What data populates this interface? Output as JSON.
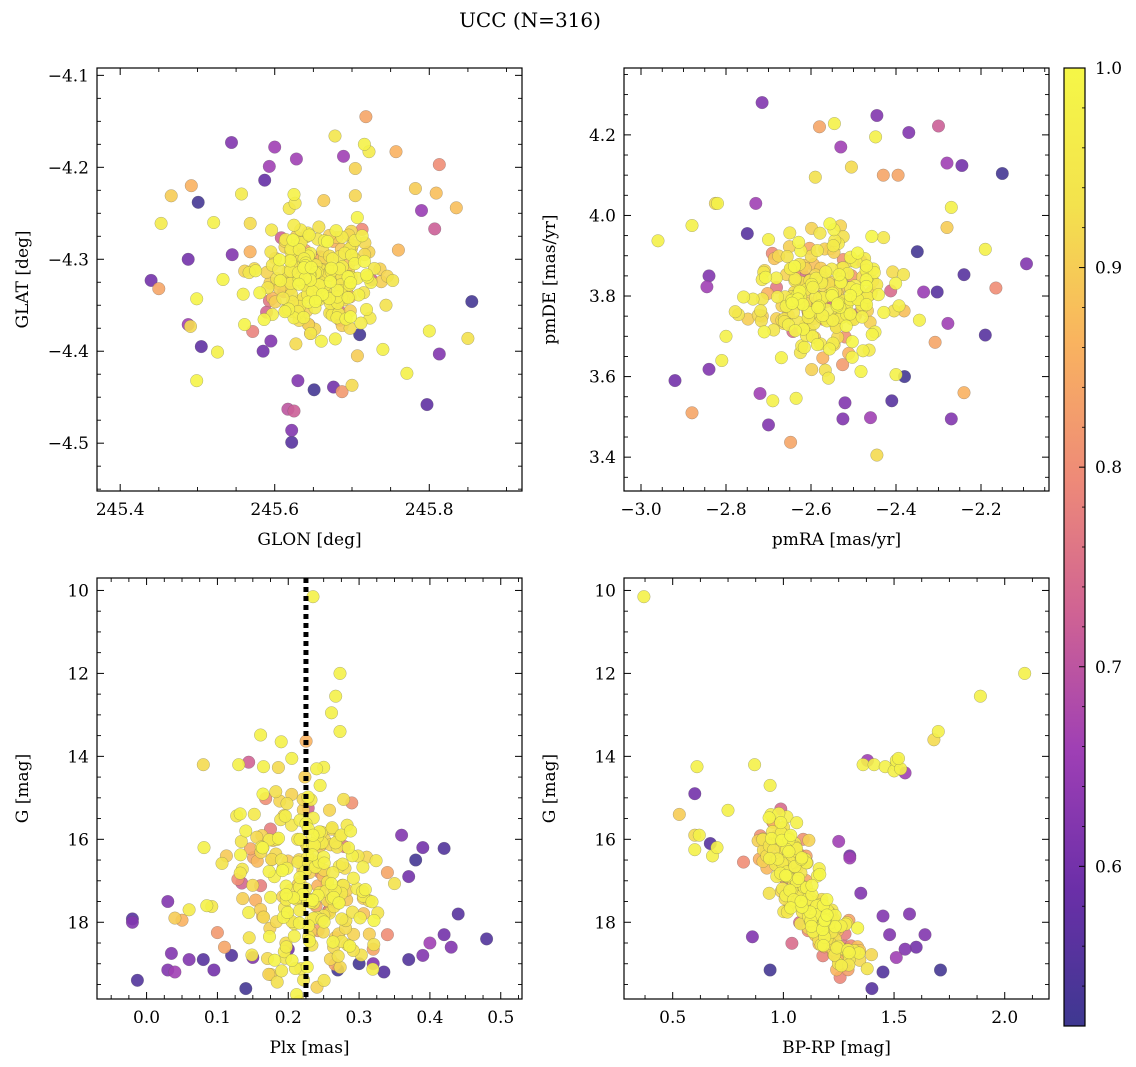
{
  "title": "UCC (N=316)",
  "colorbar": {
    "min": 0.52,
    "max": 1.0,
    "ticks": [
      0.6,
      0.7,
      0.8,
      0.9,
      1.0
    ],
    "tick_labels": [
      "0.6",
      "0.7",
      "0.8",
      "0.9",
      "1.0"
    ],
    "colormap": "plasma",
    "colors": [
      "#3e3891",
      "#6b2fa8",
      "#9e3fb5",
      "#cf6294",
      "#ee8a78",
      "#f9b35f",
      "#f3e24d",
      "#f5f747"
    ]
  },
  "chart_data": [
    {
      "type": "scatter",
      "xlabel": "GLON [deg]",
      "ylabel": "GLAT [deg]",
      "xlim": [
        245.37,
        245.92
      ],
      "ylim": [
        -4.552,
        -4.092
      ],
      "y_inverted": false,
      "xticks": [
        245.4,
        245.6,
        245.8
      ],
      "xtick_labels": [
        "245.4",
        "245.6",
        "245.8"
      ],
      "yticks": [
        -4.5,
        -4.4,
        -4.3,
        -4.2,
        -4.1
      ],
      "ytick_labels": [
        "−4.5",
        "−4.4",
        "−4.3",
        "−4.2",
        "−4.1"
      ],
      "vline": null,
      "outliers": [
        [
          245.718,
          -4.145,
          0.84
        ],
        [
          245.716,
          -4.175,
          0.98
        ],
        [
          245.544,
          -4.173,
          0.62
        ],
        [
          245.813,
          -4.197,
          0.8
        ],
        [
          245.593,
          -4.199,
          0.66
        ],
        [
          245.587,
          -4.214,
          0.58
        ],
        [
          245.492,
          -4.22,
          0.86
        ],
        [
          245.557,
          -4.229,
          0.96
        ],
        [
          245.466,
          -4.231,
          0.9
        ],
        [
          245.809,
          -4.228,
          0.88
        ],
        [
          245.501,
          -4.238,
          0.53
        ],
        [
          245.521,
          -4.26,
          0.98
        ],
        [
          245.453,
          -4.261,
          0.96
        ],
        [
          245.835,
          -4.244,
          0.88
        ],
        [
          245.79,
          -4.247,
          0.65
        ],
        [
          245.488,
          -4.3,
          0.6
        ],
        [
          245.807,
          -4.267,
          0.72
        ],
        [
          245.44,
          -4.323,
          0.6
        ],
        [
          245.533,
          -4.322,
          0.99
        ],
        [
          245.45,
          -4.332,
          0.84
        ],
        [
          245.855,
          -4.346,
          0.53
        ],
        [
          245.499,
          -4.343,
          0.99
        ],
        [
          245.488,
          -4.371,
          0.66
        ],
        [
          245.491,
          -4.373,
          0.92
        ],
        [
          245.85,
          -4.386,
          0.93
        ],
        [
          245.505,
          -4.395,
          0.57
        ],
        [
          245.526,
          -4.401,
          0.98
        ],
        [
          245.813,
          -4.403,
          0.62
        ],
        [
          245.771,
          -4.424,
          0.98
        ],
        [
          245.797,
          -4.458,
          0.57
        ],
        [
          245.499,
          -4.432,
          0.99
        ],
        [
          245.617,
          -4.463,
          0.7
        ],
        [
          245.625,
          -4.465,
          0.72
        ],
        [
          245.622,
          -4.486,
          0.62
        ],
        [
          245.622,
          -4.499,
          0.56
        ],
        [
          245.63,
          -4.432,
          0.62
        ],
        [
          245.651,
          -4.442,
          0.53
        ],
        [
          245.676,
          -4.439,
          0.6
        ],
        [
          245.687,
          -4.444,
          0.82
        ],
        [
          245.7,
          -4.437,
          0.92
        ],
        [
          245.595,
          -4.389,
          0.62
        ],
        [
          245.71,
          -4.382,
          0.53
        ],
        [
          245.74,
          -4.398,
          0.98
        ],
        [
          245.76,
          -4.29,
          0.87
        ],
        [
          245.782,
          -4.223,
          0.9
        ],
        [
          245.757,
          -4.183,
          0.86
        ],
        [
          245.6,
          -4.178,
          0.66
        ],
        [
          245.628,
          -4.191,
          0.66
        ],
        [
          245.689,
          -4.188,
          0.66
        ],
        [
          245.722,
          -4.183,
          0.96
        ],
        [
          245.678,
          -4.166,
          0.94
        ],
        [
          245.585,
          -4.4,
          0.6
        ],
        [
          245.744,
          -4.35,
          0.93
        ],
        [
          245.8,
          -4.378,
          0.98
        ],
        [
          245.545,
          -4.295,
          0.62
        ],
        [
          245.561,
          -4.371,
          0.99
        ],
        [
          245.707,
          -4.405,
          0.9
        ]
      ],
      "cluster": {
        "center": [
          245.655,
          -4.315
        ],
        "spread": [
          0.038,
          0.032
        ],
        "count": 259,
        "seed": 11
      }
    },
    {
      "type": "scatter",
      "xlabel": "pmRA [mas/yr]",
      "ylabel": "pmDE [mas/yr]",
      "xlim": [
        -3.04,
        -2.04
      ],
      "ylim": [
        3.316,
        4.366
      ],
      "y_inverted": false,
      "xticks": [
        -3.0,
        -2.8,
        -2.6,
        -2.4,
        -2.2
      ],
      "xtick_labels": [
        "−3.0",
        "−2.8",
        "−2.6",
        "−2.4",
        "−2.2"
      ],
      "yticks": [
        3.4,
        3.6,
        3.8,
        4.0,
        4.2
      ],
      "ytick_labels": [
        "3.4",
        "3.6",
        "3.8",
        "4.0",
        "4.2"
      ],
      "vline": null,
      "outliers": [
        [
          -2.715,
          4.28,
          0.62
        ],
        [
          -2.545,
          4.228,
          0.98
        ],
        [
          -2.58,
          4.22,
          0.84
        ],
        [
          -2.445,
          4.248,
          0.62
        ],
        [
          -2.37,
          4.206,
          0.62
        ],
        [
          -2.3,
          4.222,
          0.72
        ],
        [
          -2.448,
          4.195,
          0.98
        ],
        [
          -2.53,
          4.17,
          0.66
        ],
        [
          -2.28,
          4.13,
          0.66
        ],
        [
          -2.245,
          4.124,
          0.6
        ],
        [
          -2.15,
          4.104,
          0.53
        ],
        [
          -2.093,
          3.88,
          0.62
        ],
        [
          -2.19,
          3.916,
          0.98
        ],
        [
          -2.165,
          3.82,
          0.8
        ],
        [
          -2.19,
          3.703,
          0.56
        ],
        [
          -2.24,
          3.853,
          0.56
        ],
        [
          -2.278,
          3.732,
          0.66
        ],
        [
          -2.27,
          3.495,
          0.62
        ],
        [
          -2.24,
          3.56,
          0.86
        ],
        [
          -2.303,
          3.81,
          0.56
        ],
        [
          -2.308,
          3.685,
          0.84
        ],
        [
          -2.96,
          3.937,
          0.98
        ],
        [
          -2.92,
          3.59,
          0.6
        ],
        [
          -2.88,
          3.51,
          0.84
        ],
        [
          -2.84,
          3.618,
          0.62
        ],
        [
          -2.88,
          3.975,
          0.98
        ],
        [
          -2.825,
          4.03,
          0.92
        ],
        [
          -2.82,
          4.03,
          0.98
        ],
        [
          -2.84,
          3.85,
          0.62
        ],
        [
          -2.845,
          3.823,
          0.66
        ],
        [
          -2.8,
          3.7,
          0.98
        ],
        [
          -2.81,
          3.64,
          0.98
        ],
        [
          -2.72,
          3.558,
          0.66
        ],
        [
          -2.69,
          3.54,
          0.98
        ],
        [
          -2.7,
          3.48,
          0.62
        ],
        [
          -2.648,
          3.437,
          0.84
        ],
        [
          -2.635,
          3.546,
          0.98
        ],
        [
          -2.445,
          3.405,
          0.92
        ],
        [
          -2.46,
          3.498,
          0.66
        ],
        [
          -2.525,
          3.495,
          0.62
        ],
        [
          -2.52,
          3.535,
          0.62
        ],
        [
          -2.41,
          3.54,
          0.56
        ],
        [
          -2.38,
          3.6,
          0.53
        ],
        [
          -2.4,
          3.605,
          0.98
        ],
        [
          -2.73,
          4.03,
          0.66
        ],
        [
          -2.7,
          3.94,
          0.98
        ],
        [
          -2.75,
          3.955,
          0.56
        ],
        [
          -2.59,
          4.095,
          0.93
        ],
        [
          -2.505,
          4.12,
          0.92
        ],
        [
          -2.43,
          4.1,
          0.84
        ],
        [
          -2.395,
          4.1,
          0.84
        ],
        [
          -2.27,
          4.02,
          0.98
        ],
        [
          -2.28,
          3.97,
          0.9
        ],
        [
          -2.35,
          3.91,
          0.53
        ],
        [
          -2.345,
          3.74,
          0.98
        ],
        [
          -2.335,
          3.81,
          0.65
        ]
      ],
      "cluster": {
        "center": [
          -2.57,
          3.8
        ],
        "spread": [
          0.075,
          0.068
        ],
        "count": 260,
        "seed": 23
      }
    },
    {
      "type": "scatter",
      "xlabel": "Plx [mas]",
      "ylabel": "G [mag]",
      "xlim": [
        -0.07,
        0.53
      ],
      "ylim": [
        9.7,
        19.85
      ],
      "y_inverted": true,
      "xticks": [
        0.0,
        0.1,
        0.2,
        0.3,
        0.4,
        0.5
      ],
      "xtick_labels": [
        "0.0",
        "0.1",
        "0.2",
        "0.3",
        "0.4",
        "0.5"
      ],
      "yticks": [
        10,
        12,
        14,
        16,
        18
      ],
      "ytick_labels": [
        "10",
        "12",
        "14",
        "16",
        "18"
      ],
      "vline": 0.225,
      "outliers": [
        [
          0.235,
          10.15,
          0.98
        ],
        [
          0.273,
          12.0,
          0.98
        ],
        [
          0.267,
          12.55,
          0.98
        ],
        [
          0.261,
          12.95,
          0.98
        ],
        [
          0.273,
          13.4,
          0.98
        ],
        [
          0.19,
          13.65,
          0.98
        ],
        [
          0.08,
          14.2,
          0.92
        ],
        [
          0.13,
          14.2,
          0.98
        ],
        [
          0.165,
          14.25,
          0.98
        ],
        [
          0.24,
          14.3,
          0.98
        ],
        [
          0.205,
          14.05,
          0.98
        ],
        [
          0.245,
          14.7,
          0.98
        ],
        [
          0.081,
          16.2,
          0.98
        ],
        [
          0.14,
          15.8,
          0.98
        ],
        [
          0.288,
          15.8,
          0.98
        ],
        [
          0.36,
          15.9,
          0.62
        ],
        [
          0.39,
          16.2,
          0.6
        ],
        [
          0.42,
          16.22,
          0.55
        ],
        [
          0.38,
          16.5,
          0.53
        ],
        [
          0.37,
          16.9,
          0.6
        ],
        [
          0.34,
          16.8,
          0.84
        ],
        [
          0.06,
          17.7,
          0.96
        ],
        [
          0.085,
          17.6,
          0.98
        ],
        [
          0.092,
          17.62,
          0.95
        ],
        [
          0.04,
          17.9,
          0.9
        ],
        [
          -0.02,
          17.92,
          0.56
        ],
        [
          -0.02,
          18.0,
          0.62
        ],
        [
          0.03,
          17.5,
          0.62
        ],
        [
          0.44,
          17.8,
          0.56
        ],
        [
          0.48,
          18.4,
          0.55
        ],
        [
          0.42,
          18.3,
          0.6
        ],
        [
          0.43,
          18.6,
          0.62
        ],
        [
          -0.013,
          19.4,
          0.55
        ],
        [
          0.14,
          19.6,
          0.53
        ],
        [
          0.035,
          18.75,
          0.62
        ],
        [
          0.03,
          19.15,
          0.62
        ],
        [
          0.04,
          19.2,
          0.66
        ],
        [
          0.06,
          18.9,
          0.62
        ],
        [
          0.08,
          18.9,
          0.56
        ],
        [
          0.095,
          19.15,
          0.6
        ],
        [
          0.12,
          18.8,
          0.55
        ],
        [
          0.15,
          18.85,
          0.62
        ],
        [
          0.2,
          18.65,
          0.6
        ],
        [
          0.27,
          19.15,
          0.53
        ],
        [
          0.3,
          19.0,
          0.53
        ],
        [
          0.32,
          19.0,
          0.62
        ],
        [
          0.335,
          19.2,
          0.56
        ],
        [
          0.37,
          18.9,
          0.55
        ],
        [
          0.39,
          18.8,
          0.62
        ],
        [
          0.4,
          18.5,
          0.66
        ],
        [
          0.05,
          17.95,
          0.86
        ],
        [
          0.1,
          18.25,
          0.82
        ],
        [
          0.11,
          18.6,
          0.84
        ],
        [
          0.32,
          18.65,
          0.84
        ],
        [
          0.34,
          18.3,
          0.8
        ]
      ],
      "cluster": {
        "center": [
          0.225,
          17.0
        ],
        "spread": [
          0.045,
          1.2
        ],
        "count": 261,
        "seed": 37
      }
    },
    {
      "type": "scatter",
      "xlabel": "BP-RP [mag]",
      "ylabel": "G [mag]",
      "xlim": [
        0.28,
        2.2
      ],
      "ylim": [
        9.7,
        19.85
      ],
      "y_inverted": true,
      "xticks": [
        0.5,
        1.0,
        1.5,
        2.0
      ],
      "xtick_labels": [
        "0.5",
        "1.0",
        "1.5",
        "2.0"
      ],
      "yticks": [
        10,
        12,
        14,
        16,
        18
      ],
      "ytick_labels": [
        "10",
        "12",
        "14",
        "16",
        "18"
      ],
      "vline": null,
      "outliers": [
        [
          0.37,
          10.15,
          0.98
        ],
        [
          2.09,
          12.0,
          0.98
        ],
        [
          1.89,
          12.55,
          0.98
        ],
        [
          1.7,
          13.4,
          0.98
        ],
        [
          1.68,
          13.6,
          0.92
        ],
        [
          0.61,
          14.25,
          0.98
        ],
        [
          0.6,
          14.9,
          0.6
        ],
        [
          0.53,
          15.4,
          0.9
        ],
        [
          0.6,
          15.9,
          0.92
        ],
        [
          0.6,
          16.25,
          0.98
        ],
        [
          0.62,
          15.9,
          0.98
        ],
        [
          0.67,
          16.1,
          0.56
        ],
        [
          0.68,
          16.4,
          0.98
        ],
        [
          0.7,
          16.2,
          0.98
        ],
        [
          0.75,
          15.3,
          0.98
        ],
        [
          0.87,
          14.2,
          0.98
        ],
        [
          0.94,
          14.7,
          0.98
        ],
        [
          0.82,
          16.55,
          0.8
        ],
        [
          0.86,
          18.35,
          0.62
        ],
        [
          0.94,
          19.15,
          0.53
        ],
        [
          1.4,
          19.6,
          0.56
        ],
        [
          1.71,
          19.15,
          0.53
        ],
        [
          1.38,
          14.1,
          0.66
        ],
        [
          1.36,
          14.2,
          0.98
        ],
        [
          1.41,
          14.2,
          0.98
        ],
        [
          1.46,
          14.25,
          0.98
        ],
        [
          1.51,
          14.2,
          0.98
        ],
        [
          1.5,
          14.35,
          0.98
        ],
        [
          1.51,
          14.1,
          0.98
        ],
        [
          1.53,
          14.3,
          0.98
        ],
        [
          1.55,
          14.4,
          0.66
        ],
        [
          1.52,
          14.05,
          0.98
        ],
        [
          1.57,
          17.8,
          0.62
        ],
        [
          1.64,
          18.3,
          0.62
        ],
        [
          1.6,
          18.6,
          0.6
        ],
        [
          1.55,
          18.65,
          0.62
        ],
        [
          1.51,
          18.85,
          0.66
        ],
        [
          1.45,
          19.2,
          0.55
        ],
        [
          1.48,
          18.3,
          0.62
        ],
        [
          1.45,
          17.85,
          0.62
        ],
        [
          1.35,
          17.3,
          0.62
        ],
        [
          1.3,
          16.4,
          0.6
        ],
        [
          1.25,
          16.05,
          0.66
        ],
        [
          1.06,
          15.6,
          0.98
        ],
        [
          1.3,
          16.45,
          0.66
        ]
      ],
      "cluster": {
        "type": "sequence",
        "points": [
          [
            0.96,
            15.7
          ],
          [
            1.0,
            16.3
          ],
          [
            1.04,
            16.9
          ],
          [
            1.1,
            17.5
          ],
          [
            1.17,
            18.0
          ],
          [
            1.24,
            18.5
          ],
          [
            1.32,
            19.0
          ]
        ],
        "spread": [
          0.05,
          0.22
        ],
        "count": 271,
        "seed": 53
      }
    }
  ]
}
